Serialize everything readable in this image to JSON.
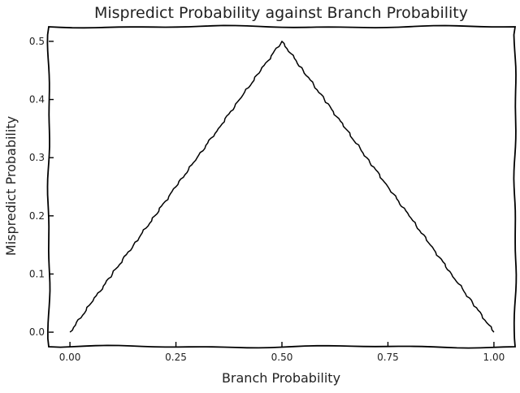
{
  "chart_data": {
    "type": "line",
    "title": "Mispredict Probability against Branch Probability",
    "xlabel": "Branch Probability",
    "ylabel": "Mispredict Probability",
    "xlim": [
      -0.05,
      1.05
    ],
    "ylim": [
      -0.025,
      0.525
    ],
    "xticks": [
      0.0,
      0.25,
      0.5,
      0.75,
      1.0
    ],
    "xtick_labels": [
      "0.00",
      "0.25",
      "0.50",
      "0.75",
      "1.00"
    ],
    "yticks": [
      0.0,
      0.1,
      0.2,
      0.3,
      0.4,
      0.5
    ],
    "ytick_labels": [
      "0.0",
      "0.1",
      "0.2",
      "0.3",
      "0.4",
      "0.5"
    ],
    "grid": false,
    "style": "xkcd",
    "series": [
      {
        "color": "#000000",
        "x": [
          0.0,
          0.05,
          0.1,
          0.15,
          0.2,
          0.25,
          0.3,
          0.35,
          0.4,
          0.45,
          0.5,
          0.55,
          0.6,
          0.65,
          0.7,
          0.75,
          0.8,
          0.85,
          0.9,
          0.95,
          1.0
        ],
        "y": [
          0.0,
          0.05,
          0.1,
          0.15,
          0.2,
          0.25,
          0.3,
          0.35,
          0.4,
          0.45,
          0.5,
          0.45,
          0.4,
          0.35,
          0.3,
          0.25,
          0.2,
          0.15,
          0.1,
          0.05,
          0.0
        ]
      }
    ]
  }
}
